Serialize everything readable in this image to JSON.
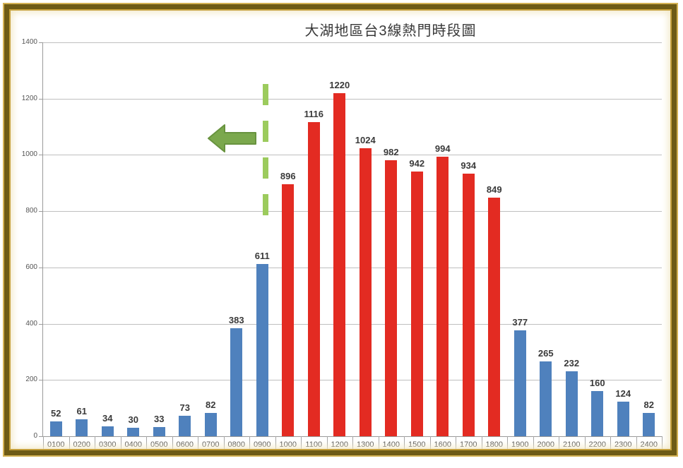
{
  "title_block": {
    "title": "大湖地區台3線熱門時段圖"
  },
  "chart_data": {
    "type": "bar",
    "title": "大湖地區台3線熱門時段圖",
    "categories": [
      "0100",
      "0200",
      "0300",
      "0400",
      "0500",
      "0600",
      "0700",
      "0800",
      "0900",
      "1000",
      "1100",
      "1200",
      "1300",
      "1400",
      "1500",
      "1600",
      "1700",
      "1800",
      "1900",
      "2000",
      "2100",
      "2200",
      "2300",
      "2400"
    ],
    "values": [
      52,
      61,
      34,
      30,
      33,
      73,
      82,
      383,
      611,
      896,
      1116,
      1220,
      1024,
      982,
      942,
      994,
      934,
      849,
      377,
      265,
      232,
      160,
      124,
      82
    ],
    "data_labels_shown": true,
    "peak_start_index": 9,
    "peak_end_index": 17,
    "xlabel": "",
    "ylabel": "",
    "ylim": [
      0,
      1400
    ],
    "yticks": [
      0,
      200,
      400,
      600,
      800,
      1000,
      1200,
      1400
    ],
    "grid": true,
    "legend": "none",
    "colors": {
      "offpeak_bar": "#4F81BD",
      "peak_bar": "#E32B22",
      "gridline": "#BFBFBF",
      "axis": "#9A9A9A",
      "value_label": "#3A3A3A",
      "tick_label": "#4D4D4D"
    },
    "annotations": {
      "dashed_line": {
        "orientation": "vertical",
        "between_categories": [
          "0900",
          "1000"
        ],
        "color": "#9CCB5D"
      },
      "arrow": {
        "direction": "left",
        "color": "#7BA84D",
        "border_color": "#68933F"
      }
    }
  },
  "frame": {
    "outer_gold": "#D4B254",
    "dark_band": "#6E5B16",
    "inner_gold": "#C5A03C",
    "glow": "#F3EACB"
  }
}
